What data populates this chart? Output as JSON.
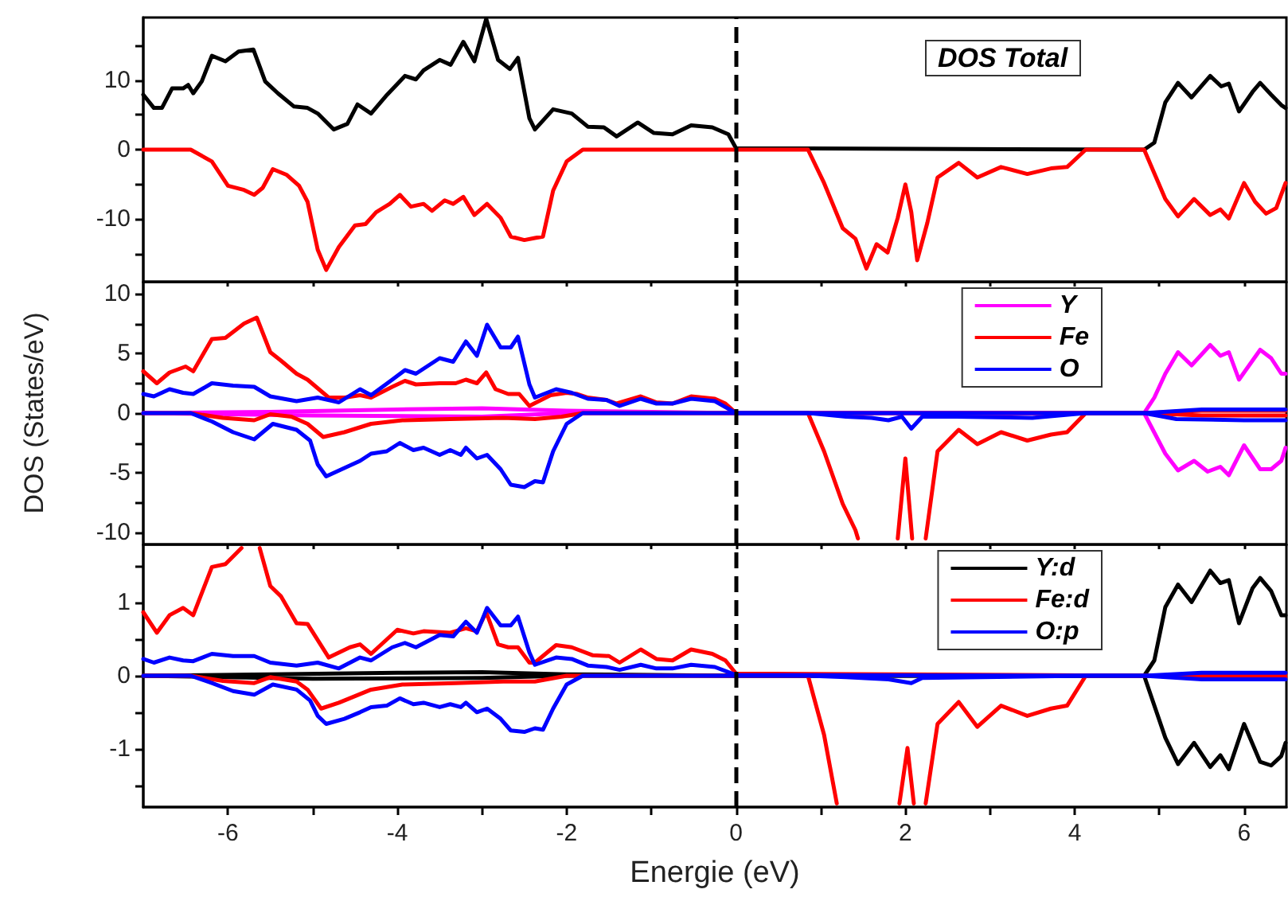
{
  "chart_data": [
    {
      "type": "line",
      "title": "DOS Total",
      "tick_labels": "y",
      "marker": "none",
      "line_style": "solid",
      "xlim": [
        -7,
        6.5
      ],
      "ylim": [
        -19,
        19
      ],
      "xticks": [
        -6,
        {
          "value": -5,
          "label": null
        },
        -4,
        {
          "value": -3,
          "label": null
        },
        -2,
        {
          "value": -1,
          "label": null
        },
        0,
        {
          "value": 1,
          "label": null
        },
        2,
        {
          "value": 3,
          "label": null
        },
        4,
        {
          "value": 5,
          "label": null
        },
        6
      ],
      "yticks": [
        {
          "value": -15,
          "label": null
        },
        -10,
        {
          "value": -5,
          "label": null
        },
        0,
        {
          "value": 5,
          "label": null
        },
        10,
        {
          "value": 15,
          "label": null
        }
      ],
      "ref_lines": [
        {
          "axis": "x",
          "value": 0,
          "color": "#000000",
          "line_style": "dashed"
        }
      ],
      "series": [
        {
          "color": "#000000",
          "x": [
            -7,
            -6.875,
            -6.78,
            -6.66,
            -6.53,
            -6.47,
            -6.41,
            -6.31,
            -6.19,
            -6.03,
            -5.875,
            -5.7,
            -5.56,
            -5.41,
            -5.22,
            -5.06,
            -4.94,
            -4.75,
            -4.59,
            -4.47,
            -4.31,
            -4.12,
            -3.91,
            -3.78,
            -3.69,
            -3.5,
            -3.37,
            -3.22,
            -3.09,
            -2.95,
            -2.81,
            -2.67,
            -2.575,
            -2.44,
            -2.375,
            -2.16,
            -1.94,
            -1.75,
            -1.56,
            -1.41,
            -1.16,
            -0.97,
            -0.75,
            -0.53,
            -0.28,
            -0.09,
            0,
            4.82,
            4.94,
            5.07,
            5.22,
            5.38,
            5.6,
            5.73,
            5.82,
            5.94,
            6.1,
            6.19,
            6.32,
            6.44,
            6.49
          ],
          "values": [
            7.9,
            6.0,
            6.0,
            8.8,
            8.8,
            9.3,
            8.1,
            9.8,
            13.5,
            12.7,
            14.1,
            14.4,
            9.8,
            8.1,
            6.2,
            6.0,
            5.2,
            2.9,
            3.7,
            6.5,
            5.2,
            7.9,
            10.6,
            10.1,
            11.4,
            12.9,
            12.2,
            15.5,
            12.7,
            18.8,
            12.9,
            11.6,
            13.2,
            4.5,
            2.9,
            5.8,
            5.2,
            3.3,
            3.2,
            1.9,
            3.9,
            2.4,
            2.2,
            3.5,
            3.2,
            2.2,
            0.2,
            0,
            1.0,
            6.8,
            9.6,
            7.5,
            10.6,
            9.1,
            9.5,
            5.5,
            8.3,
            9.6,
            7.9,
            6.4,
            6.0
          ]
        },
        {
          "color": "#ff0000",
          "x": [
            -7,
            -6.44,
            -6.19,
            -6.0,
            -5.81,
            -5.69,
            -5.59,
            -5.47,
            -5.31,
            -5.16,
            -5.06,
            -4.94,
            -4.84,
            -4.69,
            -4.5,
            -4.375,
            -4.25,
            -4.09,
            -3.97,
            -3.84,
            -3.69,
            -3.59,
            -3.44,
            -3.34,
            -3.22,
            -3.09,
            -2.94,
            -2.78,
            -2.66,
            -2.5,
            -2.375,
            -2.28,
            -2.16,
            -2.0,
            -1.81,
            -1.625,
            0.85,
            1.04,
            1.26,
            1.41,
            1.54,
            1.66,
            1.79,
            1.91,
            2.0,
            2.07,
            2.14,
            2.26,
            2.38,
            2.63,
            2.85,
            3.13,
            3.44,
            3.72,
            3.91,
            4.13,
            4.82,
            5.07,
            5.22,
            5.41,
            5.6,
            5.72,
            5.82,
            6.0,
            6.13,
            6.26,
            6.38,
            6.49
          ],
          "values": [
            0,
            0,
            -1.7,
            -5.2,
            -5.8,
            -6.5,
            -5.5,
            -2.8,
            -3.6,
            -5.2,
            -7.5,
            -14.4,
            -17.3,
            -14.0,
            -10.9,
            -10.7,
            -9.0,
            -7.8,
            -6.5,
            -8.2,
            -7.8,
            -8.8,
            -7.3,
            -7.8,
            -6.8,
            -9.4,
            -7.8,
            -9.8,
            -12.5,
            -13.0,
            -12.7,
            -12.5,
            -5.9,
            -1.7,
            0,
            0,
            0,
            -4.8,
            -11.3,
            -12.8,
            -17.1,
            -13.6,
            -14.8,
            -9.8,
            -5.0,
            -9.0,
            -15.9,
            -10.5,
            -4.0,
            -1.9,
            -4.0,
            -2.5,
            -3.5,
            -2.7,
            -2.5,
            0,
            0,
            -7.1,
            -9.6,
            -7.1,
            -9.4,
            -8.6,
            -9.9,
            -4.8,
            -7.5,
            -9.2,
            -8.4,
            -4.8
          ]
        }
      ]
    },
    {
      "type": "line",
      "ylabel": "DOS (States/eV)",
      "tick_labels": "y",
      "legend": "top right",
      "marker": "none",
      "line_style": "solid",
      "xlim": [
        -7,
        6.5
      ],
      "ylim": [
        -11,
        11
      ],
      "xticks": [
        -6,
        {
          "value": -5,
          "label": null
        },
        -4,
        {
          "value": -3,
          "label": null
        },
        -2,
        {
          "value": -1,
          "label": null
        },
        0,
        {
          "value": 1,
          "label": null
        },
        2,
        {
          "value": 3,
          "label": null
        },
        4,
        {
          "value": 5,
          "label": null
        },
        6
      ],
      "yticks": [
        -10,
        {
          "value": -7.5,
          "label": null
        },
        -5,
        {
          "value": -2.5,
          "label": null
        },
        0,
        {
          "value": 2.5,
          "label": null
        },
        5,
        {
          "value": 7.5,
          "label": null
        },
        10
      ],
      "ref_lines": [
        {
          "axis": "x",
          "value": 0,
          "color": "#000000",
          "line_style": "dashed"
        }
      ],
      "series": [
        {
          "name": "Y",
          "color": "#ff00ff",
          "x": [
            -7,
            -5.5,
            -4,
            -3,
            -2,
            -1,
            0,
            4.82,
            4.94,
            5.07,
            5.22,
            5.38,
            5.6,
            5.72,
            5.82,
            5.94,
            6.1,
            6.19,
            6.32,
            6.44,
            6.49
          ],
          "values": [
            0,
            0.1,
            0.3,
            0.4,
            0.2,
            0.1,
            0,
            0,
            1.3,
            3.3,
            5.1,
            4.0,
            5.7,
            4.8,
            5.1,
            2.8,
            4.4,
            5.3,
            4.6,
            3.3,
            3.3
          ]
        },
        {
          "color": "#ff00ff",
          "x": [
            -7,
            -5,
            -3,
            -2,
            0,
            4.82,
            5.07,
            5.22,
            5.41,
            5.57,
            5.72,
            5.82,
            6.0,
            6.19,
            6.32,
            6.44,
            6.49
          ],
          "values": [
            0,
            -0.2,
            -0.3,
            0,
            0,
            0,
            -3.4,
            -4.8,
            -4.0,
            -4.9,
            -4.5,
            -5.2,
            -2.7,
            -4.7,
            -4.7,
            -4.0,
            -2.9
          ]
        },
        {
          "name": "Fe",
          "color": "#ff0000",
          "x": [
            -7,
            -6.84,
            -6.69,
            -6.5,
            -6.41,
            -6.19,
            -6.03,
            -5.81,
            -5.66,
            -5.5,
            -5.375,
            -5.19,
            -5.06,
            -4.81,
            -4.62,
            -4.44,
            -4.31,
            -4.06,
            -3.91,
            -3.78,
            -3.5,
            -3.31,
            -3.19,
            -3.06,
            -2.95,
            -2.84,
            -2.69,
            -2.56,
            -2.44,
            -2.19,
            -2.0,
            -1.875,
            -1.75,
            -1.53,
            -1.41,
            -1.125,
            -0.94,
            -0.75,
            -0.53,
            -0.25,
            -0.125,
            0,
            4.82,
            5.5,
            6.49
          ],
          "values": [
            3.5,
            2.5,
            3.4,
            3.9,
            3.5,
            6.2,
            6.3,
            7.5,
            8.0,
            5.1,
            4.4,
            3.3,
            2.8,
            1.3,
            1.3,
            1.5,
            1.3,
            2.2,
            2.7,
            2.4,
            2.5,
            2.5,
            2.8,
            2.5,
            3.4,
            2.0,
            1.6,
            1.6,
            0.6,
            1.5,
            1.7,
            1.6,
            1.3,
            1.1,
            0.8,
            1.4,
            0.9,
            0.8,
            1.4,
            1.2,
            0.8,
            0,
            0,
            0.2,
            0.2
          ]
        },
        {
          "color": "#ff0000",
          "x": [
            -7,
            -6.44,
            -6.06,
            -5.69,
            -5.5,
            -5.25,
            -5.06,
            -4.875,
            -4.625,
            -4.31,
            -3.94,
            -3.375,
            -2.75,
            -2.375,
            -2.06,
            -1.81,
            0.85,
            1.04,
            1.26,
            1.41,
            1.44,
            1.6,
            1.91,
            2.0,
            2.08,
            2.2,
            2.24,
            2.38,
            2.63,
            2.85,
            3.13,
            3.44,
            3.72,
            3.91,
            4.13,
            4.82,
            5.5,
            6.49
          ],
          "values": [
            0,
            0,
            -0.4,
            -0.6,
            -0.1,
            -0.3,
            -0.9,
            -2.0,
            -1.6,
            -0.9,
            -0.6,
            -0.5,
            -0.4,
            -0.5,
            -0.3,
            0,
            0,
            -3.2,
            -7.6,
            -9.8,
            -10.5,
            null,
            -10.5,
            -3.8,
            -10.5,
            null,
            -10.5,
            -3.2,
            -1.4,
            -2.6,
            -1.6,
            -2.3,
            -1.8,
            -1.6,
            0,
            0,
            -0.2,
            -0.2
          ]
        },
        {
          "name": "O",
          "color": "#0000ff",
          "x": [
            -7,
            -6.875,
            -6.69,
            -6.53,
            -6.41,
            -6.19,
            -5.94,
            -5.69,
            -5.5,
            -5.19,
            -4.94,
            -4.69,
            -4.44,
            -4.31,
            -4.06,
            -3.91,
            -3.78,
            -3.5,
            -3.34,
            -3.19,
            -3.06,
            -2.94,
            -2.78,
            -2.66,
            -2.575,
            -2.44,
            -2.375,
            -2.125,
            -1.94,
            -1.75,
            -1.53,
            -1.375,
            -1.125,
            -0.94,
            -0.75,
            -0.53,
            -0.25,
            0,
            4.82,
            5.5,
            6.49
          ],
          "values": [
            1.6,
            1.4,
            2.0,
            1.7,
            1.6,
            2.5,
            2.3,
            2.2,
            1.4,
            1.0,
            1.3,
            0.9,
            2.0,
            1.5,
            2.8,
            3.6,
            3.3,
            4.6,
            4.3,
            6.0,
            4.8,
            7.4,
            5.5,
            5.5,
            6.4,
            2.4,
            1.3,
            2.0,
            1.7,
            1.2,
            1.1,
            0.6,
            1.2,
            0.8,
            0.8,
            1.2,
            1.0,
            0,
            0,
            0.3,
            0.3
          ]
        },
        {
          "color": "#0000ff",
          "x": [
            -7,
            -6.44,
            -6.19,
            -5.94,
            -5.69,
            -5.47,
            -5.19,
            -5.03,
            -4.94,
            -4.84,
            -4.625,
            -4.44,
            -4.31,
            -4.125,
            -3.97,
            -3.81,
            -3.69,
            -3.5,
            -3.375,
            -3.25,
            -3.19,
            -3.06,
            -2.94,
            -2.78,
            -2.66,
            -2.5,
            -2.375,
            -2.28,
            -2.16,
            -2.0,
            -1.81,
            0.85,
            1.3,
            1.6,
            1.8,
            1.96,
            2.07,
            2.2,
            2.6,
            3.5,
            4.13,
            4.82,
            5.2,
            6.0,
            6.49
          ],
          "values": [
            0,
            0,
            -0.7,
            -1.6,
            -2.2,
            -0.9,
            -1.4,
            -2.3,
            -4.3,
            -5.3,
            -4.6,
            -4.0,
            -3.4,
            -3.2,
            -2.5,
            -3.1,
            -2.9,
            -3.5,
            -3.1,
            -3.5,
            -2.9,
            -3.8,
            -3.5,
            -4.7,
            -6.0,
            -6.2,
            -5.7,
            -5.8,
            -3.2,
            -0.9,
            0,
            0,
            -0.3,
            -0.4,
            -0.6,
            -0.3,
            -1.3,
            -0.3,
            -0.3,
            -0.4,
            0,
            0,
            -0.5,
            -0.6,
            -0.6
          ]
        }
      ]
    },
    {
      "type": "line",
      "xlabel": "Energie (eV)",
      "legend": "top right",
      "marker": "none",
      "line_style": "solid",
      "xlim": [
        -7,
        6.5
      ],
      "ylim": [
        -1.8,
        1.8
      ],
      "xticks": [
        -6,
        {
          "value": -5,
          "label": null
        },
        -4,
        {
          "value": -3,
          "label": null
        },
        -2,
        {
          "value": -1,
          "label": null
        },
        0,
        {
          "value": 1,
          "label": null
        },
        2,
        {
          "value": 3,
          "label": null
        },
        4,
        {
          "value": 5,
          "label": null
        },
        6
      ],
      "yticks": [
        {
          "value": -1.5,
          "label": null
        },
        -1,
        {
          "value": -0.5,
          "label": null
        },
        0,
        {
          "value": 0.5,
          "label": null
        },
        1,
        {
          "value": 1.5,
          "label": null
        }
      ],
      "ref_lines": [
        {
          "axis": "x",
          "value": 0,
          "color": "#000000",
          "line_style": "dashed"
        }
      ],
      "series": [
        {
          "name": "Y:d",
          "color": "#000000",
          "x": [
            -7,
            -5.5,
            -4,
            -3,
            -2,
            -1,
            0,
            4.82,
            4.94,
            5.07,
            5.22,
            5.38,
            5.6,
            5.72,
            5.82,
            5.94,
            6.1,
            6.19,
            6.32,
            6.44,
            6.49
          ],
          "values": [
            0,
            0.02,
            0.04,
            0.05,
            0.02,
            0.01,
            0,
            0,
            0.21,
            0.94,
            1.25,
            1.01,
            1.44,
            1.27,
            1.31,
            0.72,
            1.2,
            1.34,
            1.16,
            0.83,
            0.83
          ]
        },
        {
          "color": "#000000",
          "x": [
            -7,
            -5,
            -3,
            -2,
            0,
            4.82,
            5.07,
            5.22,
            5.41,
            5.6,
            5.72,
            5.82,
            6.0,
            6.19,
            6.32,
            6.44,
            6.49
          ],
          "values": [
            0,
            -0.04,
            -0.03,
            0,
            0,
            0,
            -0.85,
            -1.21,
            -0.92,
            -1.25,
            -1.09,
            -1.28,
            -0.66,
            -1.18,
            -1.23,
            -1.1,
            -0.92
          ]
        },
        {
          "name": "Fe:d",
          "color": "#ff0000",
          "x": [
            -7,
            -6.84,
            -6.69,
            -6.53,
            -6.41,
            -6.19,
            -6.03,
            -5.91,
            -5.84,
            -5.75,
            -5.625,
            -5.5,
            -5.375,
            -5.19,
            -5.06,
            -4.81,
            -4.56,
            -4.44,
            -4.31,
            -4.0,
            -3.81,
            -3.69,
            -3.375,
            -3.19,
            -3.06,
            -2.95,
            -2.81,
            -2.69,
            -2.575,
            -2.44,
            -2.375,
            -2.125,
            -1.94,
            -1.69,
            -1.5,
            -1.375,
            -1.125,
            -0.94,
            -0.75,
            -0.53,
            -0.28,
            -0.125,
            0,
            4.82,
            6.49
          ],
          "values": [
            0.87,
            0.59,
            0.83,
            0.93,
            0.83,
            1.49,
            1.53,
            1.67,
            1.75,
            null,
            1.75,
            1.23,
            1.09,
            0.72,
            0.71,
            0.25,
            0.39,
            0.43,
            0.3,
            0.63,
            0.58,
            0.61,
            0.59,
            0.65,
            0.61,
            0.87,
            0.43,
            0.39,
            0.39,
            0.18,
            0.18,
            0.42,
            0.39,
            0.28,
            0.27,
            0.18,
            0.36,
            0.23,
            0.21,
            0.36,
            0.3,
            0.21,
            0.03,
            0,
            0.02
          ]
        },
        {
          "color": "#ff0000",
          "x": [
            -7,
            -6.44,
            -6.06,
            -5.69,
            -5.5,
            -5.19,
            -5.06,
            -4.9,
            -4.69,
            -4.31,
            -3.94,
            -3.31,
            -2.75,
            -2.375,
            -2.0,
            0.85,
            1.04,
            1.19,
            1.5,
            1.93,
            2.025,
            2.1,
            2.17,
            2.24,
            2.38,
            2.63,
            2.85,
            3.13,
            3.44,
            3.72,
            3.91,
            4.13,
            4.82,
            6.49
          ],
          "values": [
            0,
            0,
            -0.07,
            -0.1,
            -0.02,
            -0.08,
            -0.19,
            -0.45,
            -0.37,
            -0.19,
            -0.12,
            -0.1,
            -0.08,
            -0.08,
            0,
            0,
            -0.81,
            -1.75,
            null,
            -1.75,
            -0.99,
            -1.75,
            null,
            -1.75,
            -0.66,
            -0.36,
            -0.7,
            -0.41,
            -0.55,
            -0.45,
            -0.41,
            0,
            0,
            -0.02
          ]
        },
        {
          "name": "O:p",
          "color": "#0000ff",
          "x": [
            -7,
            -6.875,
            -6.69,
            -6.53,
            -6.41,
            -6.19,
            -5.94,
            -5.69,
            -5.5,
            -5.19,
            -4.94,
            -4.69,
            -4.44,
            -4.31,
            -4.06,
            -3.91,
            -3.78,
            -3.5,
            -3.34,
            -3.19,
            -3.06,
            -2.94,
            -2.78,
            -2.66,
            -2.575,
            -2.44,
            -2.375,
            -2.125,
            -1.94,
            -1.75,
            -1.53,
            -1.375,
            -1.125,
            -0.94,
            -0.75,
            -0.53,
            -0.25,
            0,
            4.82,
            5.5,
            6.49
          ],
          "values": [
            0.23,
            0.18,
            0.25,
            0.21,
            0.2,
            0.3,
            0.27,
            0.27,
            0.18,
            0.14,
            0.18,
            0.1,
            0.25,
            0.21,
            0.39,
            0.45,
            0.39,
            0.56,
            0.54,
            0.74,
            0.59,
            0.93,
            0.69,
            0.69,
            0.81,
            0.32,
            0.15,
            0.25,
            0.23,
            0.14,
            0.12,
            0.08,
            0.15,
            0.1,
            0.1,
            0.15,
            0.12,
            0.01,
            0,
            0.04,
            0.04
          ]
        },
        {
          "color": "#0000ff",
          "x": [
            -7,
            -6.44,
            -6.19,
            -5.94,
            -5.69,
            -5.47,
            -5.19,
            -5.03,
            -4.94,
            -4.84,
            -4.625,
            -4.44,
            -4.31,
            -4.125,
            -3.97,
            -3.81,
            -3.69,
            -3.5,
            -3.375,
            -3.25,
            -3.19,
            -3.06,
            -2.94,
            -2.78,
            -2.66,
            -2.5,
            -2.375,
            -2.28,
            -2.16,
            -2.0,
            -1.81,
            0.85,
            1.3,
            1.8,
            2.07,
            2.2,
            4.13,
            4.82,
            5.5,
            6.49
          ],
          "values": [
            0,
            0,
            -0.1,
            -0.21,
            -0.26,
            -0.12,
            -0.19,
            -0.34,
            -0.55,
            -0.66,
            -0.59,
            -0.5,
            -0.43,
            -0.41,
            -0.31,
            -0.39,
            -0.37,
            -0.43,
            -0.39,
            -0.43,
            -0.37,
            -0.5,
            -0.45,
            -0.59,
            -0.75,
            -0.77,
            -0.72,
            -0.74,
            -0.45,
            -0.12,
            0,
            0,
            -0.02,
            -0.05,
            -0.1,
            -0.03,
            0,
            0,
            -0.05,
            -0.05
          ]
        }
      ]
    }
  ]
}
